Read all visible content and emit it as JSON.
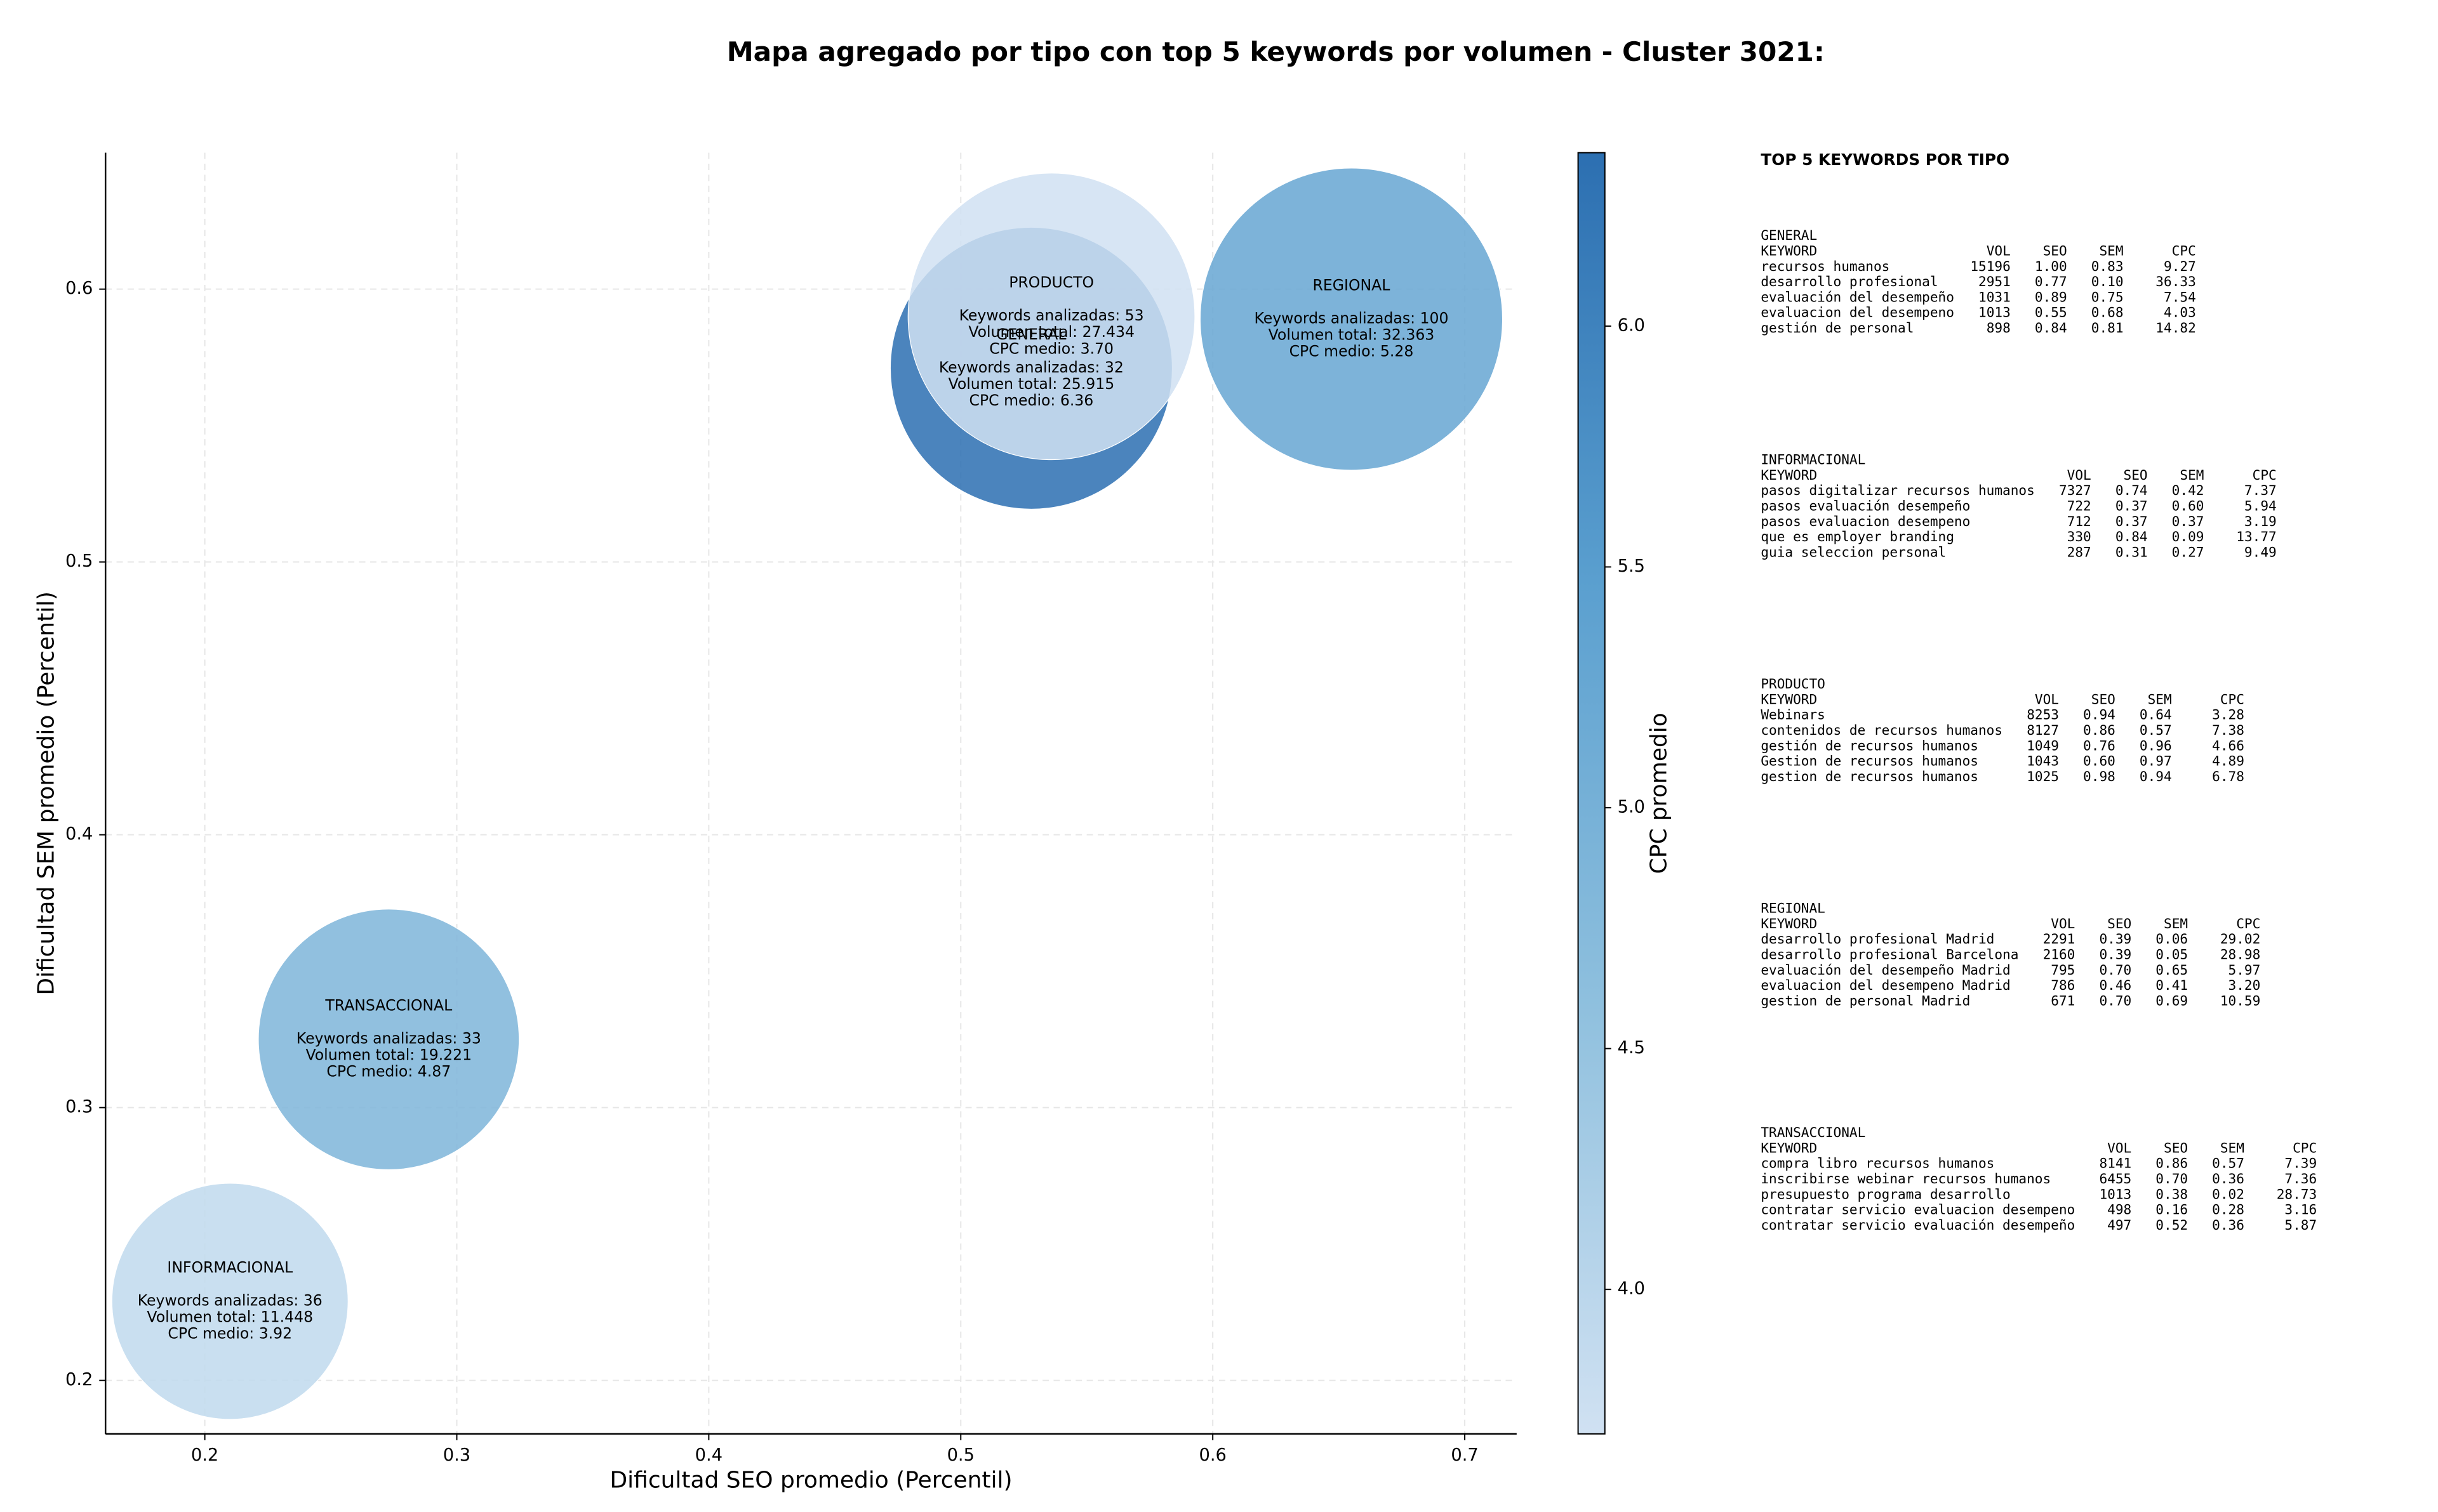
{
  "chart_data": {
    "type": "bubble",
    "title": "Mapa agregado por tipo con top 5 keywords por volumen - Cluster 3021:",
    "xlabel": "Dificultad SEO promedio (Percentil)",
    "ylabel": "Dificultad SEM promedio (Percentil)",
    "xlim": [
      0.1606,
      0.7206
    ],
    "ylim": [
      0.1804,
      0.65
    ],
    "xticks": [
      0.2,
      0.3,
      0.4,
      0.5,
      0.6,
      0.7
    ],
    "yticks": [
      0.2,
      0.3,
      0.4,
      0.5,
      0.6
    ],
    "grid": true,
    "colorbar": {
      "label": "CPC promedio",
      "lim": [
        3.7,
        6.36
      ],
      "ticks": [
        {
          "value": 4,
          "label": "4.0"
        },
        {
          "value": 4.5,
          "label": "4.5"
        },
        {
          "value": 5,
          "label": "5.0"
        },
        {
          "value": 5.5,
          "label": "5.5"
        },
        {
          "value": 6,
          "label": "6.0"
        }
      ],
      "colors": [
        "#d0e1f2",
        "#8fc0de",
        "#5a9fcf",
        "#2c6fb1"
      ]
    },
    "series": [
      {
        "name": "GENERAL",
        "x": [
          0.528
        ],
        "y": [
          0.571
        ],
        "size": [
          25915
        ],
        "cpc": [
          6.36
        ],
        "labels": [
          "Keywords analizadas: 32",
          "Volumen total: 25.915",
          "CPC medio: 6.36"
        ]
      },
      {
        "name": "INFORMACIONAL",
        "x": [
          0.21
        ],
        "y": [
          0.229
        ],
        "size": [
          11448
        ],
        "cpc": [
          3.92
        ],
        "labels": [
          "Keywords analizadas: 36",
          "Volumen total: 11.448",
          "CPC medio: 3.92"
        ]
      },
      {
        "name": "PRODUCTO",
        "x": [
          0.536
        ],
        "y": [
          0.59
        ],
        "size": [
          27434
        ],
        "cpc": [
          3.7
        ],
        "labels": [
          "Keywords analizadas: 53",
          "Volumen total: 27.434",
          "CPC medio: 3.70"
        ]
      },
      {
        "name": "REGIONAL",
        "x": [
          0.655
        ],
        "y": [
          0.589
        ],
        "size": [
          32363
        ],
        "cpc": [
          5.28
        ],
        "labels": [
          "Keywords analizadas: 100",
          "Volumen total: 32.363",
          "CPC medio: 5.28"
        ]
      },
      {
        "name": "TRANSACCIONAL",
        "x": [
          0.273
        ],
        "y": [
          0.325
        ],
        "size": [
          19221
        ],
        "cpc": [
          4.87
        ],
        "labels": [
          "Keywords analizadas: 33",
          "Volumen total: 19.221",
          "CPC medio: 4.87"
        ]
      }
    ]
  },
  "side_panel": {
    "title": "TOP 5 KEYWORDS POR TIPO",
    "sections": [
      {
        "name": "GENERAL",
        "header": [
          "KEYWORD",
          "VOL",
          "SEO",
          "SEM",
          "CPC"
        ],
        "rows": [
          [
            "recursos humanos",
            "15196",
            "1.00",
            "0.83",
            "9.27"
          ],
          [
            "desarrollo profesional",
            "2951",
            "0.77",
            "0.10",
            "36.33"
          ],
          [
            "evaluación del desempeño",
            "1031",
            "0.89",
            "0.75",
            "7.54"
          ],
          [
            "evaluacion del desempeno",
            "1013",
            "0.55",
            "0.68",
            "4.03"
          ],
          [
            "gestión de personal",
            "898",
            "0.84",
            "0.81",
            "14.82"
          ]
        ]
      },
      {
        "name": "INFORMACIONAL",
        "header": [
          "KEYWORD",
          "VOL",
          "SEO",
          "SEM",
          "CPC"
        ],
        "rows": [
          [
            "pasos digitalizar recursos humanos",
            "7327",
            "0.74",
            "0.42",
            "7.37"
          ],
          [
            "pasos evaluación desempeño",
            "722",
            "0.37",
            "0.60",
            "5.94"
          ],
          [
            "pasos evaluacion desempeno",
            "712",
            "0.37",
            "0.37",
            "3.19"
          ],
          [
            "que es employer branding",
            "330",
            "0.84",
            "0.09",
            "13.77"
          ],
          [
            "guia seleccion personal",
            "287",
            "0.31",
            "0.27",
            "9.49"
          ]
        ]
      },
      {
        "name": "PRODUCTO",
        "header": [
          "KEYWORD",
          "VOL",
          "SEO",
          "SEM",
          "CPC"
        ],
        "rows": [
          [
            "Webinars",
            "8253",
            "0.94",
            "0.64",
            "3.28"
          ],
          [
            "contenidos de recursos humanos",
            "8127",
            "0.86",
            "0.57",
            "7.38"
          ],
          [
            "gestión de recursos humanos",
            "1049",
            "0.76",
            "0.96",
            "4.66"
          ],
          [
            "Gestion de recursos humanos",
            "1043",
            "0.60",
            "0.97",
            "4.89"
          ],
          [
            "gestion de recursos humanos",
            "1025",
            "0.98",
            "0.94",
            "6.78"
          ]
        ]
      },
      {
        "name": "REGIONAL",
        "header": [
          "KEYWORD",
          "VOL",
          "SEO",
          "SEM",
          "CPC"
        ],
        "rows": [
          [
            "desarrollo profesional Madrid",
            "2291",
            "0.39",
            "0.06",
            "29.02"
          ],
          [
            "desarrollo profesional Barcelona",
            "2160",
            "0.39",
            "0.05",
            "28.98"
          ],
          [
            "evaluación del desempeño Madrid",
            "795",
            "0.70",
            "0.65",
            "5.97"
          ],
          [
            "evaluacion del desempeno Madrid",
            "786",
            "0.46",
            "0.41",
            "3.20"
          ],
          [
            "gestion de personal Madrid",
            "671",
            "0.70",
            "0.69",
            "10.59"
          ]
        ]
      },
      {
        "name": "TRANSACCIONAL",
        "header": [
          "KEYWORD",
          "VOL",
          "SEO",
          "SEM",
          "CPC"
        ],
        "rows": [
          [
            "compra libro recursos humanos",
            "8141",
            "0.86",
            "0.57",
            "7.39"
          ],
          [
            "inscribirse webinar recursos humanos",
            "6455",
            "0.70",
            "0.36",
            "7.36"
          ],
          [
            "presupuesto programa desarrollo",
            "1013",
            "0.38",
            "0.02",
            "28.73"
          ],
          [
            "contratar servicio evaluacion desempeno",
            "498",
            "0.16",
            "0.28",
            "3.16"
          ],
          [
            "contratar servicio evaluación desempeño",
            "497",
            "0.52",
            "0.36",
            "5.87"
          ]
        ]
      }
    ]
  }
}
